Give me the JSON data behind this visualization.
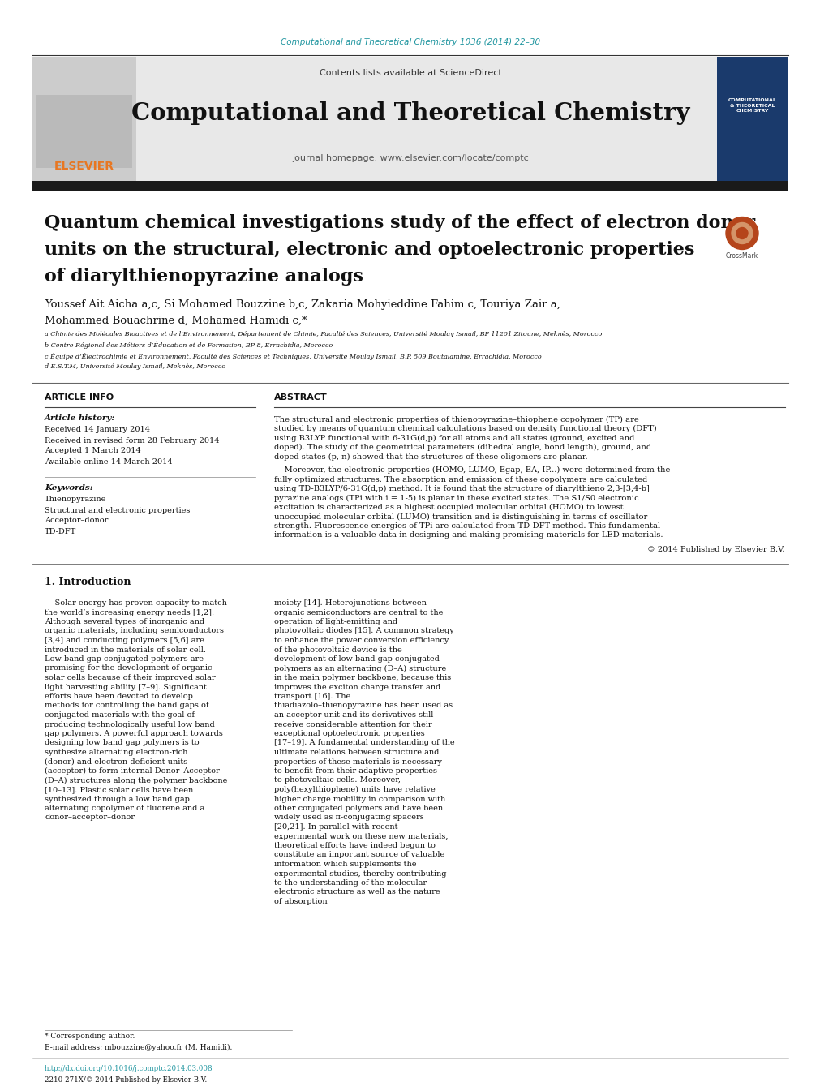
{
  "page_bg": "#ffffff",
  "top_journal_ref": "Computational and Theoretical Chemistry 1036 (2014) 22–30",
  "top_journal_ref_color": "#2196a0",
  "header_bg": "#e8e8e8",
  "header_contents_text": "Contents lists available at ",
  "header_sciencedirect": "ScienceDirect",
  "header_sciencedirect_color": "#2196a0",
  "header_journal_name": "Computational and Theoretical Chemistry",
  "header_journal_homepage": "journal homepage: www.elsevier.com/locate/comptc",
  "dark_bar_color": "#1a1a1a",
  "article_title": "Quantum chemical investigations study of the effect of electron donor\nunits on the structural, electronic and optoelectronic properties\nof diarylthienopyrazine analogs",
  "authors_line1": "Youssef Ait Aicha a,c, Si Mohamed Bouzzine b,c, Zakaria Mohyieddine Fahim c, Touriya Zair a,",
  "authors_line2": "Mohammed Bouachrine d, Mohamed Hamidi c,*",
  "affil_a": "a Chimie des Molécules Bioactives et de l’Environnement, Département de Chimie, Faculté des Sciences, Université Moulay Ismail, BP 11201 Zitoune, Meknès, Morocco",
  "affil_b": "b Centre Régional des Métiers d’Éducation et de Formation, BP 8, Errachidia, Morocco",
  "affil_c": "c Équipe d’Électrochimie et Environnement, Faculté des Sciences et Techniques, Université Moulay Ismail, B.P. 509 Boutalamine, Errachidia, Morocco",
  "affil_d": "d E.S.T.M, Université Moulay Ismail, Meknès, Morocco",
  "article_info_label": "ARTICLE INFO",
  "abstract_label": "ABSTRACT",
  "article_history_label": "Article history:",
  "received1": "Received 14 January 2014",
  "received2": "Received in revised form 28 February 2014",
  "accepted": "Accepted 1 March 2014",
  "available": "Available online 14 March 2014",
  "keywords_label": "Keywords:",
  "kw1": "Thienopyrazine",
  "kw2": "Structural and electronic properties",
  "kw3": "Acceptor–donor",
  "kw4": "TD-DFT",
  "abstract_para1": "The structural and electronic properties of thienopyrazine–thiophene copolymer (TP) are studied by means of quantum chemical calculations based on density functional theory (DFT) using B3LYP functional with 6-31G(d,p) for all atoms and all states (ground, excited and doped). The study of the geometrical parameters (dihedral angle, bond length), ground, and doped states (p, n) showed that the structures of these oligomers are planar.",
  "abstract_para2": "Moreover, the electronic properties (HOMO, LUMO, Egap, EA, IP...) were determined from the fully optimized structures. The absorption and emission of these copolymers are calculated using TD-B3LYP/6-31G(d,p) method. It is found that the structure of diarylthieno 2,3-[3,4-b] pyrazine analogs (TPi with i = 1-5) is planar in these excited states. The S1/S0 electronic excitation is characterized as a highest occupied molecular orbital (HOMO) to lowest unoccupied molecular orbital (LUMO) transition and is distinguishing in terms of oscillator strength. Fluorescence energies of TPi are calculated from TD-DFT method. This fundamental information is a valuable data in designing and making promising materials for LED materials.",
  "copyright": "© 2014 Published by Elsevier B.V.",
  "intro_label": "1. Introduction",
  "intro_col1": "Solar energy has proven capacity to match the world’s increasing energy needs [1,2]. Although several types of inorganic and organic materials, including semiconductors [3,4] and conducting polymers [5,6] are introduced in the materials of solar cell. Low band gap conjugated polymers are promising for the development of organic solar cells because of their improved solar light harvesting ability [7–9]. Significant efforts have been devoted to develop methods for controlling the band gaps of conjugated materials with the goal of producing technologically useful low band gap polymers. A powerful approach towards designing low band gap polymers is to synthesize alternating electron-rich (donor) and electron-deficient units (acceptor) to form internal Donor–Acceptor (D–A) structures along the polymer backbone [10–13]. Plastic solar cells have been synthesized through a low band gap alternating copolymer of fluorene and a donor–acceptor–donor",
  "intro_col2": "moiety [14]. Heterojunctions between organic semiconductors are central to the operation of light-emitting and photovoltaic diodes [15]. A common strategy to enhance the power conversion efficiency of the photovoltaic device is the development of low band gap conjugated polymers as an alternating (D–A) structure in the main polymer backbone, because this improves the exciton charge transfer and transport [16]. The thiadiazolo–thienopyrazine has been used as an acceptor unit and its derivatives still receive considerable attention for their exceptional optoelectronic properties [17–19]. A fundamental understanding of the ultimate relations between structure and properties of these materials is necessary to benefit from their adaptive properties to photovoltaic cells. Moreover, poly(hexylthiophene) units have relative higher charge mobility in comparison with other conjugated polymers and have been widely used as π-conjugating spacers [20,21]. In parallel with recent experimental work on these new materials, theoretical efforts have indeed begun to constitute an important source of valuable information which supplements the experimental studies, thereby contributing to the understanding of the molecular electronic structure as well as the nature of absorption",
  "footer_corresponding": "* Corresponding author.",
  "footer_email": "E-mail address: mbouzzine@yahoo.fr (M. Hamidi).",
  "footer_doi": "http://dx.doi.org/10.1016/j.comptc.2014.03.008",
  "footer_issn": "2210-271X/© 2014 Published by Elsevier B.V.",
  "elsevier_color": "#e87722",
  "link_color": "#2196a0"
}
